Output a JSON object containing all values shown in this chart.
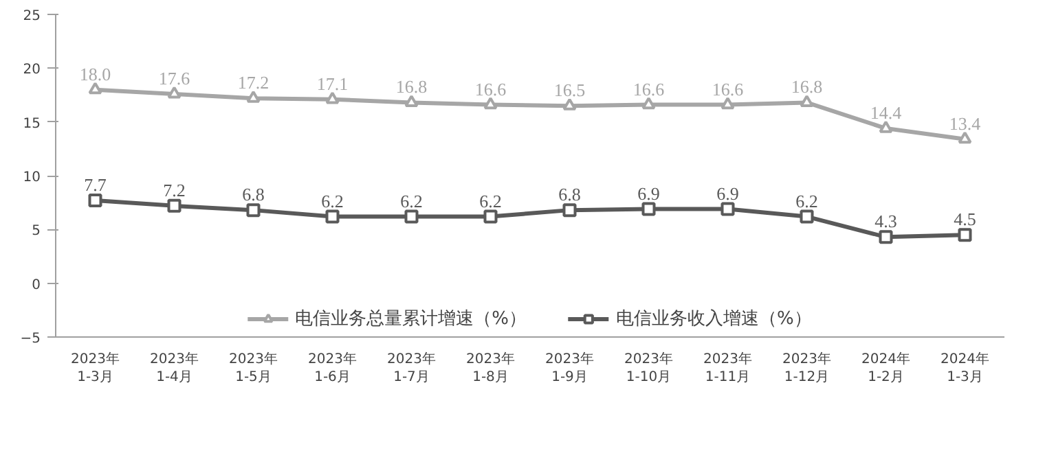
{
  "chart_data": {
    "type": "line",
    "categories": [
      "2023年\n1-3月",
      "2023年\n1-4月",
      "2023年\n1-5月",
      "2023年\n1-6月",
      "2023年\n1-7月",
      "2023年\n1-8月",
      "2023年\n1-9月",
      "2023年\n1-10月",
      "2023年\n1-11月",
      "2023年\n1-12月",
      "2024年\n1-2月",
      "2024年\n1-3月"
    ],
    "series": [
      {
        "name": "电信业务总量累计增速（%）",
        "color": "#a6a6a6",
        "marker": "triangle",
        "values": [
          18.0,
          17.6,
          17.2,
          17.1,
          16.8,
          16.6,
          16.5,
          16.6,
          16.6,
          16.8,
          14.4,
          13.4
        ],
        "value_labels": [
          "18.0",
          "17.6",
          "17.2",
          "17.1",
          "16.8",
          "16.6",
          "16.5",
          "16.6",
          "16.6",
          "16.8",
          "14.4",
          "13.4"
        ]
      },
      {
        "name": "电信业务收入增速（%）",
        "color": "#595959",
        "marker": "square",
        "values": [
          7.7,
          7.2,
          6.8,
          6.2,
          6.2,
          6.2,
          6.8,
          6.9,
          6.9,
          6.2,
          4.3,
          4.5
        ],
        "value_labels": [
          "7.7",
          "7.2",
          "6.8",
          "6.2",
          "6.2",
          "6.2",
          "6.8",
          "6.9",
          "6.9",
          "6.2",
          "4.3",
          "4.5"
        ]
      }
    ],
    "ylim": [
      -5,
      25
    ],
    "yticks": [
      -5,
      0,
      5,
      10,
      15,
      20,
      25
    ],
    "grid": false,
    "legend": "bottom",
    "line_style": "solid"
  }
}
